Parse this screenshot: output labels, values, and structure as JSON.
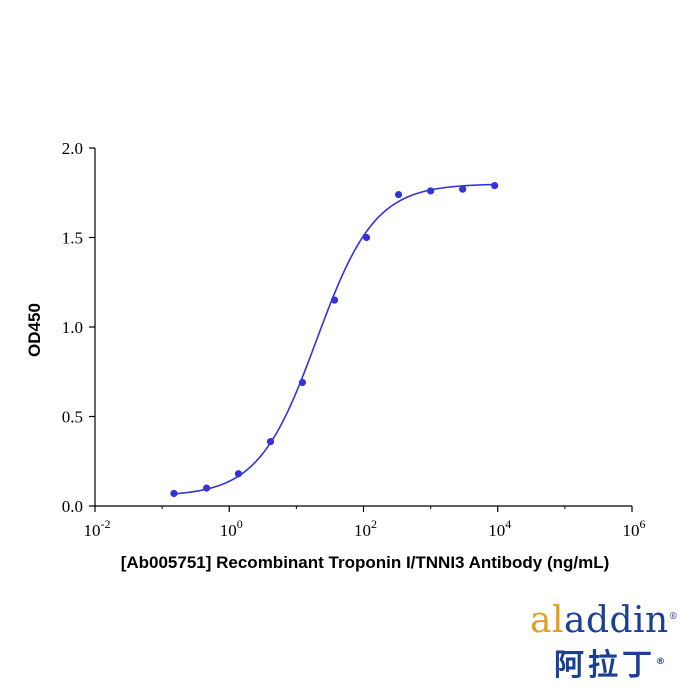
{
  "chart_data": {
    "type": "scatter",
    "title": "",
    "xlabel": "[Ab005751] Recombinant Troponin I/TNNI3 Antibody (ng/mL)",
    "ylabel": "OD450",
    "x_scale": "log10",
    "xlim": [
      0.01,
      1000000
    ],
    "ylim": [
      0,
      2.0
    ],
    "x_ticks": [
      {
        "base": "10",
        "exp": "-2"
      },
      {
        "base": "10",
        "exp": "0"
      },
      {
        "base": "10",
        "exp": "2"
      },
      {
        "base": "10",
        "exp": "4"
      },
      {
        "base": "10",
        "exp": "6"
      }
    ],
    "x_tick_values": [
      0.01,
      1,
      100,
      10000,
      1000000
    ],
    "y_ticks": [
      "0.0",
      "0.5",
      "1.0",
      "1.5",
      "2.0"
    ],
    "y_tick_values": [
      0,
      0.5,
      1.0,
      1.5,
      2.0
    ],
    "series": [
      {
        "color": "#3333dd",
        "points": [
          {
            "x": 0.15,
            "y": 0.07
          },
          {
            "x": 0.46,
            "y": 0.1
          },
          {
            "x": 1.37,
            "y": 0.18
          },
          {
            "x": 4.12,
            "y": 0.36
          },
          {
            "x": 12.3,
            "y": 0.69
          },
          {
            "x": 37.0,
            "y": 1.15
          },
          {
            "x": 111,
            "y": 1.5
          },
          {
            "x": 333,
            "y": 1.74
          },
          {
            "x": 1000,
            "y": 1.76
          },
          {
            "x": 3000,
            "y": 1.77
          },
          {
            "x": 9000,
            "y": 1.79
          }
        ],
        "fit": {
          "model": "4PL",
          "bottom": 0.055,
          "top": 1.8,
          "ec50": 20,
          "hill": 1.0
        }
      }
    ]
  },
  "logo": {
    "brand_a": "al",
    "brand_b": "addin",
    "reg": "®",
    "cn": "阿拉丁",
    "cn_reg": "®"
  }
}
